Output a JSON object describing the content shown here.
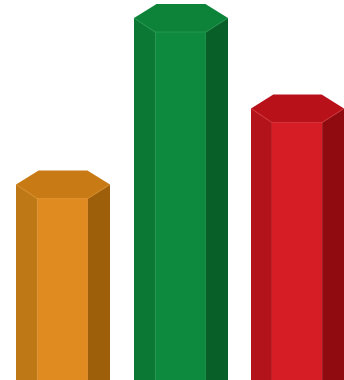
{
  "chart_data": {
    "type": "bar",
    "title": "",
    "xlabel": "",
    "ylabel": "",
    "categories": [
      "",
      "",
      ""
    ],
    "values": [
      54,
      100,
      75
    ],
    "ylim": [
      0,
      100
    ],
    "grid": false,
    "legend": "none",
    "colors": [
      {
        "front": "#DF8B20",
        "left": "#BF7816",
        "right": "#9E5F0A",
        "top": "#C87B14",
        "top_edge": "#E39A3D"
      },
      {
        "front": "#0D8A3E",
        "left": "#0B7834",
        "right": "#086028",
        "top": "#0C8339",
        "top_edge": "#35A45F"
      },
      {
        "front": "#D61D25",
        "left": "#B3131A",
        "right": "#8F0B10",
        "top": "#B8111A",
        "top_edge": "#E24A50"
      }
    ]
  }
}
